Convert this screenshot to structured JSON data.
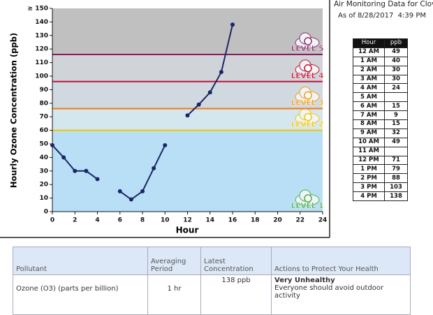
{
  "header": {
    "title": "Air Monitoring Data for Clovis",
    "as_of": "As of 8/28/2017  4:39 PM"
  },
  "chart_data": {
    "type": "line",
    "xlabel": "Hour",
    "ylabel": "Hourly Ozone Concentration (ppb)",
    "x": [
      0,
      1,
      2,
      3,
      4,
      5,
      6,
      7,
      8,
      9,
      10,
      11,
      12,
      13,
      14,
      15,
      16
    ],
    "values": [
      49,
      40,
      30,
      30,
      24,
      null,
      15,
      9,
      15,
      32,
      49,
      null,
      71,
      79,
      88,
      103,
      138
    ],
    "color": "#1c2566",
    "xlim": [
      0,
      24
    ],
    "xticks": [
      0,
      2,
      4,
      6,
      8,
      10,
      12,
      14,
      16,
      18,
      20,
      22,
      24
    ],
    "ylim": [
      0,
      150
    ],
    "yticks": [
      0,
      10,
      20,
      30,
      40,
      50,
      60,
      70,
      80,
      90,
      100,
      110,
      120,
      130,
      140,
      {
        "value": 150,
        "label": "≥ 150"
      }
    ],
    "bands": [
      {
        "from": 0,
        "to": 60,
        "color": "#b9dff6",
        "label": "LEVEL 1",
        "label_color": "#4cae4c"
      },
      {
        "from": 60,
        "to": 76,
        "color": "#d4e7ef",
        "label": "LEVEL 2",
        "label_color": "#f2c500",
        "line_color": "#f5c400"
      },
      {
        "from": 76,
        "to": 96,
        "color": "#cfd9df",
        "label": "LEVEL 3",
        "label_color": "#f39c12",
        "line_color": "#f07d1e"
      },
      {
        "from": 96,
        "to": 116,
        "color": "#d0d4d8",
        "label": "LEVEL 4",
        "label_color": "#c8102e",
        "line_color": "#c0143c"
      },
      {
        "from": 116,
        "to": 150,
        "color": "#c0c0c0",
        "label": "LEVEL 5",
        "label_color": "#8e2a6b",
        "line_color": "#8b1a5e"
      }
    ]
  },
  "hourly_table": {
    "columns": [
      "Hour",
      "ppb"
    ],
    "rows": [
      [
        "12 AM",
        49
      ],
      [
        "1 AM",
        40
      ],
      [
        "2 AM",
        30
      ],
      [
        "3 AM",
        30
      ],
      [
        "4 AM",
        24
      ],
      [
        "5 AM",
        null
      ],
      [
        "6 AM",
        15
      ],
      [
        "7 AM",
        9
      ],
      [
        "8 AM",
        15
      ],
      [
        "9 AM",
        32
      ],
      [
        "10 AM",
        49
      ],
      [
        "11 AM",
        null
      ],
      [
        "12 PM",
        71
      ],
      [
        "1 PM",
        79
      ],
      [
        "2 PM",
        88
      ],
      [
        "3 PM",
        103
      ],
      [
        "4 PM",
        138
      ]
    ]
  },
  "pollutant_table": {
    "columns": [
      "Pollutant",
      "Averaging Period",
      "Latest Concentration",
      "Actions to Protect Your Health"
    ],
    "rows": [
      [
        "Ozone (O3) (parts per billion)",
        "1 hr",
        "138 ppb",
        {
          "title": "Very Unhealthy",
          "text": "Everyone should avoid outdoor activity"
        }
      ]
    ]
  }
}
